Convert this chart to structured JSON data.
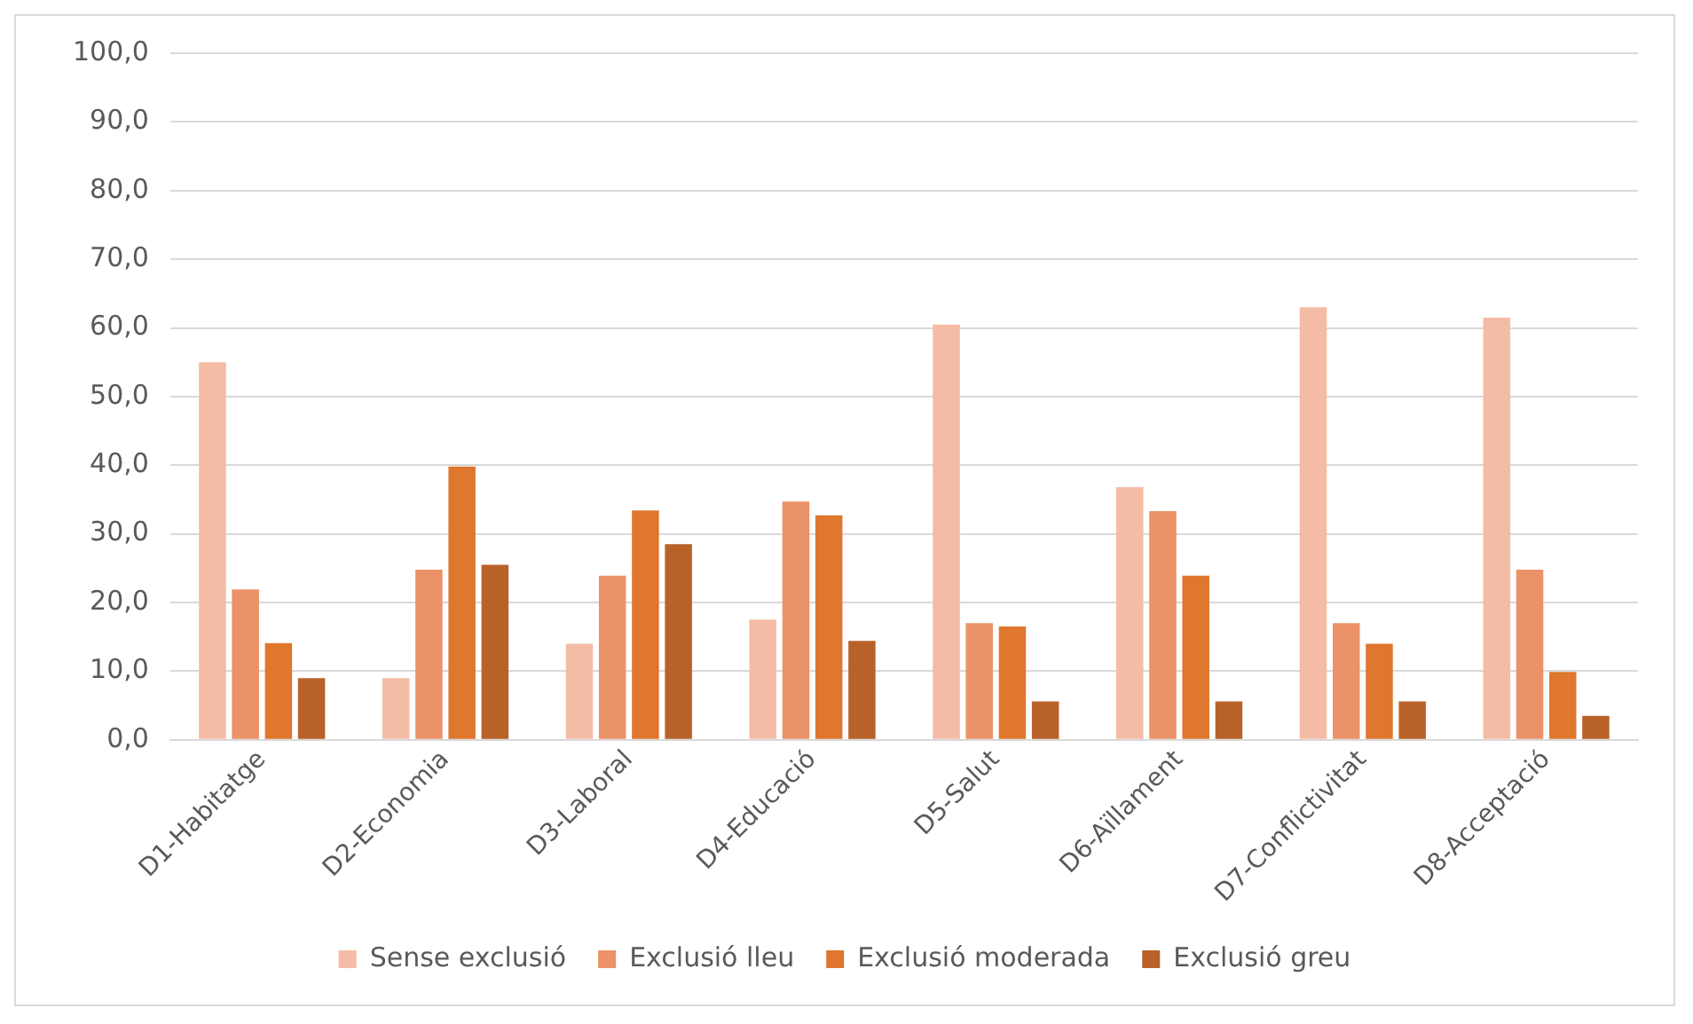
{
  "chart_data": {
    "type": "bar",
    "categories": [
      "D1-Habitatge",
      "D2-Economia",
      "D3-Laboral",
      "D4-Educació",
      "D5-Salut",
      "D6-Aïllament",
      "D7-Conflictivitat",
      "D8-Acceptació"
    ],
    "series": [
      {
        "name": "Sense exclusió",
        "color": "#f4bca5",
        "values": [
          55.0,
          9.0,
          14.0,
          17.5,
          60.5,
          36.8,
          63.0,
          61.5
        ]
      },
      {
        "name": "Exclusió lleu",
        "color": "#ec9268",
        "values": [
          21.9,
          24.8,
          23.9,
          34.7,
          17.0,
          33.3,
          17.0,
          24.8
        ]
      },
      {
        "name": "Exclusió moderada",
        "color": "#df772f",
        "values": [
          14.1,
          39.8,
          33.4,
          32.7,
          16.5,
          23.9,
          14.0,
          9.9
        ]
      },
      {
        "name": "Exclusió greu",
        "color": "#b8622a",
        "values": [
          9.0,
          25.5,
          28.5,
          14.4,
          5.6,
          5.6,
          5.6,
          3.5
        ]
      }
    ],
    "ylim": [
      0,
      100
    ],
    "yticks": [
      {
        "value": 0,
        "label": "0,0"
      },
      {
        "value": 10,
        "label": "10,0"
      },
      {
        "value": 20,
        "label": "20,0"
      },
      {
        "value": 30,
        "label": "30,0"
      },
      {
        "value": 40,
        "label": "40,0"
      },
      {
        "value": 50,
        "label": "50,0"
      },
      {
        "value": 60,
        "label": "60,0"
      },
      {
        "value": 70,
        "label": "70,0"
      },
      {
        "value": 80,
        "label": "80,0"
      },
      {
        "value": 90,
        "label": "90,0"
      },
      {
        "value": 100,
        "label": "100,0"
      }
    ],
    "grid": "y",
    "legend": "bottom"
  }
}
